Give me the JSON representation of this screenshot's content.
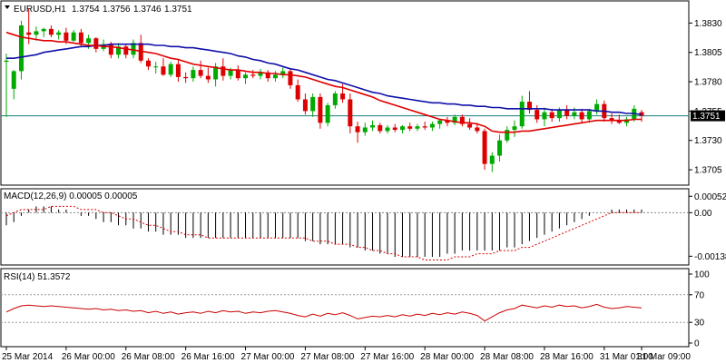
{
  "chart_data": [
    {
      "type": "candlestick",
      "title": "EURUSD,H1",
      "ohlc_readout": [
        "1.3754",
        "1.3756",
        "1.3746",
        "1.3751"
      ],
      "current_price": 1.3751,
      "current_price_label": "1.3751",
      "ylim": [
        1.3695,
        1.3845
      ],
      "yticks": [
        1.3705,
        1.373,
        1.3755,
        1.378,
        1.3805,
        1.383
      ],
      "ytick_labels": [
        "1.3705",
        "1.3730",
        "1.3755",
        "1.3780",
        "1.3805",
        "1.3830"
      ],
      "colors": {
        "bull": "#00aa00",
        "bear": "#dd0000",
        "ma_fast": "#e00000",
        "ma_slow": "#1010aa",
        "price_line": "#1a7d7d"
      },
      "candles": [
        [
          1.3797,
          1.3804,
          1.375,
          1.3798
        ],
        [
          1.3774,
          1.379,
          1.3765,
          1.3789
        ],
        [
          1.3789,
          1.3832,
          1.3782,
          1.3828
        ],
        [
          1.3822,
          1.3842,
          1.3812,
          1.382
        ],
        [
          1.382,
          1.3827,
          1.3815,
          1.3823
        ],
        [
          1.3823,
          1.3826,
          1.3818,
          1.3825
        ],
        [
          1.3825,
          1.3828,
          1.3818,
          1.382
        ],
        [
          1.382,
          1.3824,
          1.3816,
          1.3822
        ],
        [
          1.3822,
          1.3826,
          1.3812,
          1.3815
        ],
        [
          1.3815,
          1.3824,
          1.3814,
          1.3822
        ],
        [
          1.3822,
          1.3825,
          1.381,
          1.3813
        ],
        [
          1.3813,
          1.382,
          1.3808,
          1.3817
        ],
        [
          1.3817,
          1.3818,
          1.3805,
          1.3808
        ],
        [
          1.3808,
          1.3816,
          1.3806,
          1.3812
        ],
        [
          1.3812,
          1.3814,
          1.38,
          1.3803
        ],
        [
          1.3803,
          1.3813,
          1.38,
          1.381
        ],
        [
          1.381,
          1.3812,
          1.38,
          1.3803
        ],
        [
          1.3803,
          1.3816,
          1.38,
          1.3813
        ],
        [
          1.3813,
          1.382,
          1.3796,
          1.3798
        ],
        [
          1.3798,
          1.38,
          1.379,
          1.3793
        ],
        [
          1.3793,
          1.3797,
          1.3787,
          1.3793
        ],
        [
          1.3793,
          1.38,
          1.3785,
          1.3786
        ],
        [
          1.3786,
          1.3797,
          1.3784,
          1.3795
        ],
        [
          1.3795,
          1.3799,
          1.378,
          1.3784
        ],
        [
          1.3784,
          1.3788,
          1.3779,
          1.3783
        ],
        [
          1.3783,
          1.3793,
          1.378,
          1.379
        ],
        [
          1.379,
          1.3798,
          1.3783,
          1.3785
        ],
        [
          1.3785,
          1.3792,
          1.3779,
          1.3782
        ],
        [
          1.3782,
          1.3796,
          1.3776,
          1.3793
        ],
        [
          1.3793,
          1.38,
          1.3781,
          1.3785
        ],
        [
          1.3785,
          1.3792,
          1.3782,
          1.379
        ],
        [
          1.379,
          1.3794,
          1.3781,
          1.3783
        ],
        [
          1.3783,
          1.3788,
          1.3778,
          1.3786
        ],
        [
          1.3786,
          1.379,
          1.3783,
          1.3785
        ],
        [
          1.3785,
          1.3791,
          1.3782,
          1.3788
        ],
        [
          1.3788,
          1.379,
          1.378,
          1.3783
        ],
        [
          1.3783,
          1.3789,
          1.378,
          1.3786
        ],
        [
          1.3786,
          1.3792,
          1.3783,
          1.3789
        ],
        [
          1.3789,
          1.3791,
          1.3774,
          1.3777
        ],
        [
          1.3777,
          1.3782,
          1.3763,
          1.3765
        ],
        [
          1.3765,
          1.377,
          1.3752,
          1.3755
        ],
        [
          1.3755,
          1.377,
          1.375,
          1.3767
        ],
        [
          1.3767,
          1.377,
          1.374,
          1.3745
        ],
        [
          1.3745,
          1.3762,
          1.3742,
          1.376
        ],
        [
          1.376,
          1.3772,
          1.3757,
          1.377
        ],
        [
          1.377,
          1.3778,
          1.3762,
          1.3765
        ],
        [
          1.3765,
          1.377,
          1.3736,
          1.3742
        ],
        [
          1.3742,
          1.3746,
          1.3728,
          1.3737
        ],
        [
          1.3737,
          1.3745,
          1.3734,
          1.3741
        ],
        [
          1.3741,
          1.3747,
          1.3738,
          1.3743
        ],
        [
          1.3743,
          1.3745,
          1.3736,
          1.3738
        ],
        [
          1.3738,
          1.3743,
          1.3736,
          1.3741
        ],
        [
          1.3741,
          1.3744,
          1.3737,
          1.3739
        ],
        [
          1.3739,
          1.3743,
          1.3736,
          1.3742
        ],
        [
          1.3742,
          1.3745,
          1.3738,
          1.374
        ],
        [
          1.374,
          1.3744,
          1.3738,
          1.3742
        ],
        [
          1.3742,
          1.3746,
          1.3739,
          1.3741
        ],
        [
          1.3741,
          1.3746,
          1.3738,
          1.3744
        ],
        [
          1.3744,
          1.3748,
          1.374,
          1.3747
        ],
        [
          1.3747,
          1.375,
          1.3742,
          1.3745
        ],
        [
          1.3745,
          1.3752,
          1.3743,
          1.375
        ],
        [
          1.375,
          1.3752,
          1.3742,
          1.3744
        ],
        [
          1.3744,
          1.3749,
          1.3739,
          1.3741
        ],
        [
          1.3741,
          1.3745,
          1.3736,
          1.3738
        ],
        [
          1.3738,
          1.374,
          1.3705,
          1.371
        ],
        [
          1.371,
          1.372,
          1.3703,
          1.3717
        ],
        [
          1.3717,
          1.3735,
          1.3712,
          1.373
        ],
        [
          1.373,
          1.3742,
          1.3728,
          1.3739
        ],
        [
          1.3739,
          1.3747,
          1.3733,
          1.3742
        ],
        [
          1.3742,
          1.3768,
          1.374,
          1.3763
        ],
        [
          1.3763,
          1.3772,
          1.3753,
          1.3756
        ],
        [
          1.3756,
          1.376,
          1.3745,
          1.3748
        ],
        [
          1.3748,
          1.3758,
          1.3742,
          1.3754
        ],
        [
          1.3754,
          1.3757,
          1.3746,
          1.3749
        ],
        [
          1.3749,
          1.3758,
          1.3746,
          1.3756
        ],
        [
          1.3756,
          1.376,
          1.3748,
          1.3751
        ],
        [
          1.3751,
          1.3758,
          1.3748,
          1.3754
        ],
        [
          1.3754,
          1.3757,
          1.3745,
          1.3748
        ],
        [
          1.3748,
          1.3757,
          1.3745,
          1.3755
        ],
        [
          1.3755,
          1.3765,
          1.3752,
          1.3761
        ],
        [
          1.3761,
          1.3764,
          1.3746,
          1.3749
        ],
        [
          1.3749,
          1.3753,
          1.3744,
          1.3747
        ],
        [
          1.3747,
          1.3752,
          1.3744,
          1.3745
        ],
        [
          1.3745,
          1.375,
          1.3742,
          1.3748
        ],
        [
          1.3748,
          1.376,
          1.3746,
          1.3757
        ],
        [
          1.3754,
          1.3756,
          1.3746,
          1.3751
        ]
      ],
      "ma_slow": [
        1.38,
        1.38,
        1.3801,
        1.3802,
        1.3803,
        1.3805,
        1.3806,
        1.3807,
        1.3808,
        1.3809,
        1.381,
        1.381,
        1.3811,
        1.3811,
        1.3812,
        1.3812,
        1.3812,
        1.3812,
        1.3812,
        1.3812,
        1.3811,
        1.3811,
        1.381,
        1.381,
        1.3809,
        1.3809,
        1.3808,
        1.3807,
        1.3806,
        1.3805,
        1.3804,
        1.3802,
        1.3801,
        1.3799,
        1.3798,
        1.3796,
        1.3795,
        1.3793,
        1.3791,
        1.379,
        1.3788,
        1.3786,
        1.3784,
        1.3782,
        1.3781,
        1.3779,
        1.3777,
        1.3775,
        1.3773,
        1.3771,
        1.377,
        1.3768,
        1.3767,
        1.3766,
        1.3765,
        1.3764,
        1.3763,
        1.3762,
        1.3762,
        1.3761,
        1.3761,
        1.376,
        1.376,
        1.3759,
        1.3759,
        1.3758,
        1.3758,
        1.3757,
        1.3757,
        1.3757,
        1.3757,
        1.3757,
        1.3757,
        1.3756,
        1.3756,
        1.3756,
        1.3756,
        1.3756,
        1.3756,
        1.3755,
        1.3755,
        1.3754,
        1.3754,
        1.3753,
        1.3753,
        1.3752
      ],
      "ma_fast": [
        1.3822,
        1.382,
        1.3818,
        1.3817,
        1.3816,
        1.3815,
        1.3815,
        1.3814,
        1.3814,
        1.3813,
        1.3812,
        1.3811,
        1.3811,
        1.381,
        1.381,
        1.3809,
        1.3808,
        1.3807,
        1.3806,
        1.3805,
        1.3804,
        1.3802,
        1.38,
        1.3799,
        1.3797,
        1.3795,
        1.3794,
        1.3793,
        1.3792,
        1.3791,
        1.379,
        1.379,
        1.3789,
        1.3788,
        1.3788,
        1.3787,
        1.3787,
        1.3786,
        1.3786,
        1.3785,
        1.3784,
        1.3782,
        1.378,
        1.3778,
        1.3776,
        1.3775,
        1.3773,
        1.3771,
        1.3769,
        1.3767,
        1.3764,
        1.3762,
        1.376,
        1.3758,
        1.3756,
        1.3754,
        1.3752,
        1.375,
        1.3748,
        1.3747,
        1.3746,
        1.3745,
        1.3745,
        1.3744,
        1.3742,
        1.3738,
        1.3737,
        1.3737,
        1.3737,
        1.3738,
        1.3738,
        1.3739,
        1.374,
        1.3741,
        1.3742,
        1.3743,
        1.3744,
        1.3745,
        1.3746,
        1.3747,
        1.3747,
        1.3747,
        1.3747,
        1.3747,
        1.3748,
        1.3748
      ]
    },
    {
      "type": "bar",
      "title": "MACD(12,26,9) 0.00005 0.00005",
      "ylim": [
        -0.0016,
        0.0007
      ],
      "yticks": [
        0.00052,
        0.0,
        -0.00138
      ],
      "ytick_labels": [
        "0.00052",
        "0.00",
        "-0.00138"
      ],
      "histogram": [
        -0.0004,
        -0.0003,
        -0.0001,
        0.0001,
        0.0002,
        0.0002,
        0.0002,
        0.0001,
        0.0001,
        0.0,
        -0.0001,
        -0.0001,
        -0.0002,
        -0.0003,
        -0.0003,
        -0.0004,
        -0.0004,
        -0.0005,
        -0.0005,
        -0.0006,
        -0.0006,
        -0.0007,
        -0.0007,
        -0.0007,
        -0.0008,
        -0.0008,
        -0.0008,
        -0.0008,
        -0.0008,
        -0.0008,
        -0.0008,
        -0.0008,
        -0.0008,
        -0.0008,
        -0.0008,
        -0.0008,
        -0.0008,
        -0.0008,
        -0.0008,
        -0.0008,
        -0.0009,
        -0.0009,
        -0.001,
        -0.001,
        -0.001,
        -0.001,
        -0.0011,
        -0.0011,
        -0.0012,
        -0.0012,
        -0.0013,
        -0.0013,
        -0.0014,
        -0.0014,
        -0.0014,
        -0.0014,
        -0.0014,
        -0.0014,
        -0.0014,
        -0.0013,
        -0.0013,
        -0.0012,
        -0.0012,
        -0.0012,
        -0.0012,
        -0.0012,
        -0.0012,
        -0.0011,
        -0.0011,
        -0.001,
        -0.0009,
        -0.0008,
        -0.0007,
        -0.0006,
        -0.0005,
        -0.0004,
        -0.0003,
        -0.0002,
        -0.0001,
        0.0,
        0.0,
        0.0001,
        0.0001,
        0.0001,
        0.0001,
        0.0001
      ],
      "signal": [
        -0.0001,
        0.0,
        0.0001,
        0.0001,
        0.0001,
        0.0001,
        0.0002,
        0.0002,
        0.0002,
        0.0002,
        0.0001,
        0.0001,
        0.0001,
        0.0,
        0.0,
        -0.0001,
        -0.0002,
        -0.0002,
        -0.0003,
        -0.0004,
        -0.0004,
        -0.0005,
        -0.0006,
        -0.0006,
        -0.0007,
        -0.0007,
        -0.0007,
        -0.0008,
        -0.0008,
        -0.0008,
        -0.0008,
        -0.0008,
        -0.0008,
        -0.0008,
        -0.0008,
        -0.0008,
        -0.0008,
        -0.0008,
        -0.0008,
        -0.0008,
        -0.0008,
        -0.0009,
        -0.0009,
        -0.0009,
        -0.001,
        -0.001,
        -0.001,
        -0.0011,
        -0.0011,
        -0.0012,
        -0.0012,
        -0.0013,
        -0.0013,
        -0.0014,
        -0.0014,
        -0.0014,
        -0.0015,
        -0.0015,
        -0.0015,
        -0.0015,
        -0.0014,
        -0.0014,
        -0.0014,
        -0.0013,
        -0.0013,
        -0.0013,
        -0.0012,
        -0.0012,
        -0.0012,
        -0.0011,
        -0.0011,
        -0.001,
        -0.0009,
        -0.0008,
        -0.0007,
        -0.0006,
        -0.0005,
        -0.0004,
        -0.0003,
        -0.0002,
        -0.0001,
        0.0,
        0.0,
        0.0,
        0.0,
        0.0
      ],
      "colors": {
        "histogram": "#000000",
        "signal": "#dd0000"
      }
    },
    {
      "type": "line",
      "title": "RSI(14) 51.3572",
      "ylim": [
        0,
        100
      ],
      "yticks": [
        100,
        70,
        30,
        0
      ],
      "ytick_labels": [
        "100",
        "70",
        "30",
        "0"
      ],
      "levels": [
        70,
        30
      ],
      "values": [
        45,
        50,
        54,
        55,
        54,
        53,
        54,
        53,
        52,
        51,
        50,
        49,
        50,
        48,
        49,
        47,
        48,
        46,
        47,
        44,
        46,
        43,
        45,
        42,
        44,
        45,
        43,
        46,
        44,
        47,
        45,
        46,
        43,
        45,
        44,
        46,
        47,
        45,
        43,
        40,
        38,
        42,
        39,
        43,
        41,
        44,
        40,
        35,
        37,
        39,
        38,
        40,
        38,
        41,
        39,
        42,
        40,
        43,
        41,
        44,
        42,
        45,
        43,
        40,
        32,
        38,
        44,
        48,
        50,
        55,
        53,
        51,
        54,
        52,
        55,
        53,
        54,
        51,
        53,
        56,
        52,
        50,
        51,
        53,
        52,
        51
      ],
      "colors": {
        "line": "#cc0000"
      }
    }
  ],
  "x_axis": {
    "labels": [
      "25 Mar 2014",
      "26 Mar 00:00",
      "26 Mar 08:00",
      "26 Mar 16:00",
      "27 Mar 00:00",
      "27 Mar 08:00",
      "27 Mar 16:00",
      "28 Mar 00:00",
      "28 Mar 08:00",
      "28 Mar 16:00",
      "31 Mar 01:00",
      "31 Mar 09:00"
    ],
    "label_index": [
      0,
      8,
      16,
      24,
      32,
      40,
      48,
      56,
      64,
      72,
      80,
      85
    ]
  }
}
